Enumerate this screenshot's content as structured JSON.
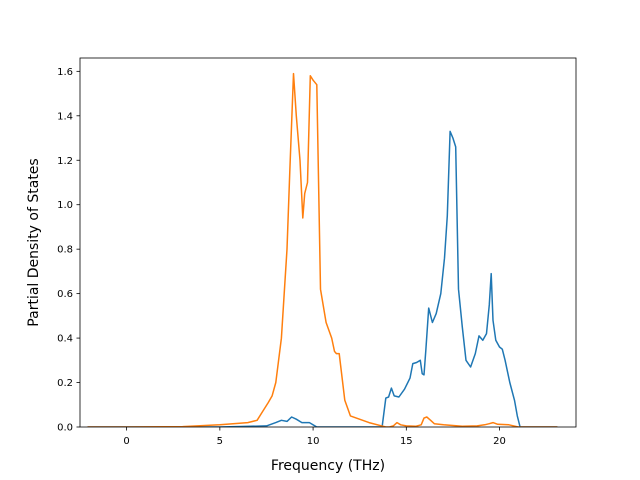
{
  "chart_data": {
    "type": "line",
    "title": "",
    "xlabel": "Frequency (THz)",
    "ylabel": "Partial Density of States",
    "xlim": [
      -2.5,
      24.1
    ],
    "ylim": [
      0.0,
      1.66
    ],
    "xticks": [
      0,
      5,
      10,
      15,
      20
    ],
    "yticks": [
      0.0,
      0.2,
      0.4,
      0.6,
      0.8,
      1.0,
      1.2,
      1.4,
      1.6
    ],
    "xtick_labels": [
      "0",
      "5",
      "10",
      "15",
      "20"
    ],
    "ytick_labels": [
      "0.0",
      "0.2",
      "0.4",
      "0.6",
      "0.8",
      "1.0",
      "1.2",
      "1.4",
      "1.6"
    ],
    "grid": false,
    "legend": false,
    "series": [
      {
        "color": "#1f77b4",
        "x": [
          -2.1,
          0,
          5,
          7.5,
          8.0,
          8.3,
          8.6,
          8.85,
          9.1,
          9.4,
          9.8,
          10.2,
          11,
          13.7,
          13.9,
          14.05,
          14.2,
          14.35,
          14.6,
          14.9,
          15.2,
          15.35,
          15.55,
          15.75,
          15.85,
          15.95,
          16.05,
          16.2,
          16.4,
          16.6,
          16.85,
          17.05,
          17.2,
          17.35,
          17.5,
          17.65,
          17.8,
          18.0,
          18.2,
          18.45,
          18.7,
          18.9,
          19.1,
          19.3,
          19.45,
          19.55,
          19.65,
          19.8,
          20.0,
          20.15,
          20.3,
          20.55,
          20.8,
          20.95,
          21.1,
          23.1
        ],
        "y": [
          0,
          0,
          0.0,
          0.005,
          0.02,
          0.03,
          0.025,
          0.045,
          0.035,
          0.02,
          0.02,
          0.0,
          0.0,
          0.0,
          0.13,
          0.135,
          0.175,
          0.14,
          0.135,
          0.17,
          0.22,
          0.285,
          0.29,
          0.3,
          0.24,
          0.235,
          0.35,
          0.535,
          0.47,
          0.51,
          0.6,
          0.76,
          0.95,
          1.33,
          1.3,
          1.26,
          0.62,
          0.45,
          0.3,
          0.27,
          0.33,
          0.41,
          0.39,
          0.42,
          0.55,
          0.69,
          0.48,
          0.39,
          0.36,
          0.35,
          0.3,
          0.2,
          0.12,
          0.05,
          0.0,
          0.0
        ]
      },
      {
        "color": "#ff7f0e",
        "x": [
          -2.1,
          0,
          3,
          5,
          6.5,
          7.0,
          7.3,
          7.6,
          7.8,
          8.0,
          8.15,
          8.3,
          8.45,
          8.6,
          8.75,
          8.95,
          9.1,
          9.3,
          9.45,
          9.55,
          9.7,
          9.85,
          10.0,
          10.2,
          10.4,
          10.7,
          11.0,
          11.15,
          11.25,
          11.4,
          11.7,
          12.0,
          13,
          13.9,
          14.1,
          14.3,
          14.5,
          14.7,
          15,
          15.5,
          15.8,
          15.95,
          16.1,
          16.3,
          16.5,
          17,
          18,
          18.8,
          19.2,
          19.45,
          19.65,
          19.9,
          20.5,
          21,
          23.1
        ],
        "y": [
          0,
          0,
          0.002,
          0.01,
          0.02,
          0.03,
          0.07,
          0.11,
          0.14,
          0.2,
          0.3,
          0.4,
          0.6,
          0.8,
          1.15,
          1.59,
          1.4,
          1.2,
          0.94,
          1.05,
          1.1,
          1.58,
          1.56,
          1.54,
          0.62,
          0.47,
          0.4,
          0.34,
          0.33,
          0.33,
          0.12,
          0.05,
          0.02,
          0.0,
          0.0,
          0.005,
          0.02,
          0.01,
          0.005,
          0.003,
          0.01,
          0.04,
          0.045,
          0.03,
          0.015,
          0.01,
          0.003,
          0.005,
          0.01,
          0.015,
          0.02,
          0.012,
          0.01,
          0.0,
          0.0
        ]
      }
    ]
  }
}
